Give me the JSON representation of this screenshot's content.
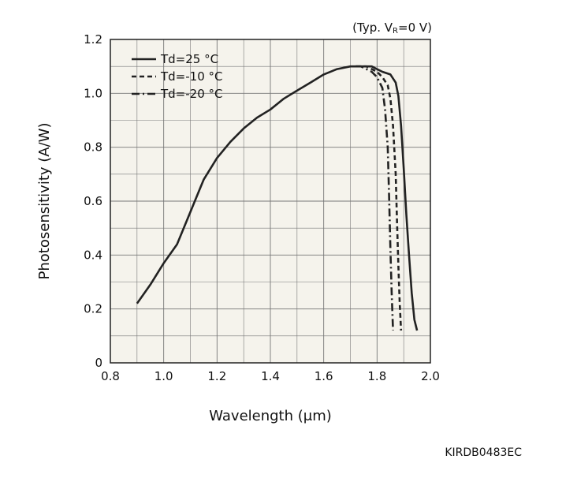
{
  "chart_data": {
    "type": "line",
    "xlabel": "Wavelength (μm)",
    "ylabel": "Photosensitivity (A/W)",
    "xlim": [
      0.8,
      2.0
    ],
    "ylim": [
      0,
      1.2
    ],
    "x_ticks": [
      "0.8",
      "1.0",
      "1.2",
      "1.4",
      "1.6",
      "1.8",
      "2.0"
    ],
    "y_ticks": [
      "0",
      "0.2",
      "0.4",
      "0.6",
      "0.8",
      "1.0",
      "1.2"
    ],
    "grid": true,
    "legend_position": "top-left",
    "condition": {
      "prefix": "(Typ. V",
      "subscript": "R",
      "suffix": "=0 V)"
    },
    "document_code": "KIRDB0483EC",
    "background_color": "#f5f3ec",
    "line_color": "#222222",
    "series": [
      {
        "name": "Td=25 °C",
        "dash": "solid",
        "points": [
          [
            0.9,
            0.22
          ],
          [
            0.95,
            0.29
          ],
          [
            1.0,
            0.37
          ],
          [
            1.05,
            0.44
          ],
          [
            1.1,
            0.56
          ],
          [
            1.15,
            0.68
          ],
          [
            1.2,
            0.76
          ],
          [
            1.25,
            0.82
          ],
          [
            1.3,
            0.87
          ],
          [
            1.35,
            0.91
          ],
          [
            1.4,
            0.94
          ],
          [
            1.45,
            0.98
          ],
          [
            1.5,
            1.01
          ],
          [
            1.55,
            1.04
          ],
          [
            1.6,
            1.07
          ],
          [
            1.65,
            1.09
          ],
          [
            1.7,
            1.1
          ],
          [
            1.75,
            1.1
          ],
          [
            1.78,
            1.1
          ],
          [
            1.8,
            1.09
          ],
          [
            1.82,
            1.08
          ],
          [
            1.85,
            1.07
          ],
          [
            1.87,
            1.04
          ],
          [
            1.88,
            0.99
          ],
          [
            1.89,
            0.88
          ],
          [
            1.9,
            0.72
          ],
          [
            1.91,
            0.55
          ],
          [
            1.92,
            0.4
          ],
          [
            1.93,
            0.26
          ],
          [
            1.94,
            0.16
          ],
          [
            1.95,
            0.12
          ]
        ]
      },
      {
        "name": "Td=-10 °C",
        "dash": "dashed",
        "points": [
          [
            1.72,
            1.1
          ],
          [
            1.74,
            1.1
          ],
          [
            1.76,
            1.1
          ],
          [
            1.78,
            1.09
          ],
          [
            1.8,
            1.08
          ],
          [
            1.82,
            1.06
          ],
          [
            1.84,
            1.03
          ],
          [
            1.85,
            0.98
          ],
          [
            1.86,
            0.88
          ],
          [
            1.87,
            0.7
          ],
          [
            1.875,
            0.52
          ],
          [
            1.88,
            0.36
          ],
          [
            1.885,
            0.22
          ],
          [
            1.89,
            0.12
          ]
        ]
      },
      {
        "name": "Td=-20 °C",
        "dash": "dash-dot",
        "points": [
          [
            1.72,
            1.1
          ],
          [
            1.74,
            1.1
          ],
          [
            1.76,
            1.09
          ],
          [
            1.78,
            1.08
          ],
          [
            1.8,
            1.06
          ],
          [
            1.82,
            1.02
          ],
          [
            1.83,
            0.94
          ],
          [
            1.84,
            0.8
          ],
          [
            1.845,
            0.62
          ],
          [
            1.85,
            0.42
          ],
          [
            1.855,
            0.26
          ],
          [
            1.86,
            0.12
          ]
        ]
      }
    ]
  }
}
